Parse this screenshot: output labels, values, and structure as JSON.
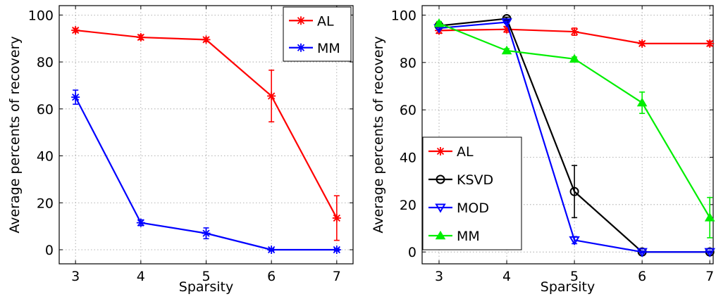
{
  "chart_data": [
    {
      "type": "line",
      "xlabel": "Sparsity",
      "ylabel": "Average percents of recovery",
      "xlim": [
        2.75,
        7.25
      ],
      "ylim": [
        -6,
        104
      ],
      "xticks": [
        3,
        4,
        5,
        6,
        7
      ],
      "yticks": [
        0,
        20,
        40,
        60,
        80,
        100
      ],
      "grid": true,
      "legend": "top-right",
      "series": [
        {
          "name": "AL",
          "color": "#ff0000",
          "marker": "star",
          "x": [
            3,
            4,
            5,
            6,
            7
          ],
          "y": [
            93.5,
            90.5,
            89.5,
            65.5,
            13.5
          ],
          "err": [
            0.8,
            1.0,
            0.8,
            11.0,
            9.5
          ]
        },
        {
          "name": "MM",
          "color": "#0000ff",
          "marker": "star",
          "x": [
            3,
            4,
            5,
            6,
            7
          ],
          "y": [
            65,
            11.5,
            7,
            0,
            0
          ],
          "err": [
            3,
            1.2,
            2.3,
            0.4,
            0.4
          ]
        }
      ]
    },
    {
      "type": "line",
      "xlabel": "Sparsity",
      "ylabel": "Average percents of recovery",
      "xlim": [
        2.75,
        7.05
      ],
      "ylim": [
        -5,
        104
      ],
      "xticks": [
        3,
        4,
        5,
        6,
        7
      ],
      "yticks": [
        0,
        20,
        40,
        60,
        80,
        100
      ],
      "grid": true,
      "legend": "bottom-left",
      "series": [
        {
          "name": "AL",
          "color": "#ff0000",
          "marker": "star",
          "x": [
            3,
            4,
            5,
            6,
            7
          ],
          "y": [
            93.5,
            94,
            93,
            88,
            88
          ],
          "err": [
            1.2,
            1.2,
            1.5,
            0.8,
            1.0
          ]
        },
        {
          "name": "KSVD",
          "color": "#000000",
          "marker": "circle",
          "x": [
            3,
            4,
            5,
            6,
            7
          ],
          "y": [
            95.5,
            98.5,
            25.5,
            0,
            0
          ],
          "err": [
            0.6,
            0.6,
            11.0,
            0.4,
            0.4
          ]
        },
        {
          "name": "MOD",
          "color": "#0000ff",
          "marker": "triangle-down",
          "x": [
            3,
            4,
            5,
            6,
            7
          ],
          "y": [
            94.5,
            97,
            5,
            0,
            0
          ],
          "err": [
            0.5,
            0.5,
            1.5,
            0.4,
            0.4
          ]
        },
        {
          "name": "MM",
          "color": "#00ee00",
          "marker": "triangle-up",
          "x": [
            3,
            4,
            5,
            6,
            7
          ],
          "y": [
            96.5,
            85,
            81.5,
            63,
            14.5
          ],
          "err": [
            0.8,
            0.8,
            0.8,
            4.5,
            8.5
          ]
        }
      ]
    }
  ]
}
